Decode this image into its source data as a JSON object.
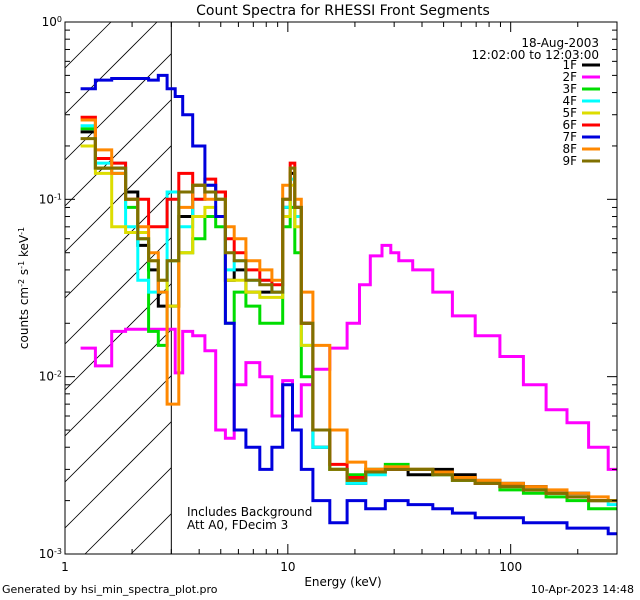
{
  "chart_data": {
    "type": "line",
    "title": "Count Spectra for RHESSI Front Segments",
    "xlabel": "Energy (keV)",
    "ylabel": "counts cm^-2 s^-1 keV^-1",
    "xscale": "log",
    "yscale": "log",
    "xlim": [
      1,
      300
    ],
    "ylim": [
      0.001,
      1
    ],
    "x_ticks": [
      {
        "value": 1,
        "label": "1"
      },
      {
        "value": 10,
        "label": "10"
      },
      {
        "value": 100,
        "label": "100"
      }
    ],
    "y_ticks": [
      {
        "value": 0.001,
        "base": "10",
        "exp": "-3"
      },
      {
        "value": 0.01,
        "base": "10",
        "exp": "-2"
      },
      {
        "value": 0.1,
        "base": "10",
        "exp": "-1"
      },
      {
        "value": 1,
        "base": "10",
        "exp": "0"
      }
    ],
    "date": "18-Aug-2003",
    "time_range": "12:02:00 to 12:03:00",
    "annotation": [
      "Includes Background",
      "Att A0, FDecim 3"
    ],
    "hatched_region_max_kev": 3,
    "series": [
      {
        "name": "1F",
        "color": "#000000",
        "x": [
          1.25,
          1.5,
          1.75,
          2,
          2.25,
          2.5,
          2.75,
          3,
          3.5,
          4,
          4.5,
          5,
          5.5,
          6,
          7,
          8,
          9,
          10,
          10.5,
          11,
          12,
          14,
          17,
          20,
          25,
          30,
          40,
          50,
          60,
          80,
          100,
          130,
          160,
          200,
          250,
          300
        ],
        "y": [
          0.24,
          0.15,
          0.15,
          0.11,
          0.055,
          0.04,
          0.025,
          0.025,
          0.08,
          0.12,
          0.11,
          0.11,
          0.035,
          0.04,
          0.03,
          0.03,
          0.03,
          0.09,
          0.14,
          0.09,
          0.02,
          0.004,
          0.003,
          0.0025,
          0.003,
          0.003,
          0.0028,
          0.003,
          0.0028,
          0.0026,
          0.0025,
          0.0024,
          0.0022,
          0.0022,
          0.002,
          0.002
        ]
      },
      {
        "name": "2F",
        "color": "#ff00ff",
        "x": [
          1.25,
          1.5,
          1.75,
          2,
          2.25,
          2.5,
          2.75,
          3,
          3.25,
          3.5,
          4,
          4.5,
          5,
          5.5,
          6,
          7,
          8,
          9,
          10,
          11,
          12,
          14,
          17,
          20,
          22,
          25,
          28,
          30,
          33,
          40,
          50,
          60,
          80,
          100,
          130,
          160,
          200,
          250,
          300
        ],
        "y": [
          0.0145,
          0.0115,
          0.018,
          0.0185,
          0.0185,
          0.0185,
          0.0185,
          0.0185,
          0.0105,
          0.018,
          0.017,
          0.014,
          0.005,
          0.0045,
          0.009,
          0.012,
          0.01,
          0.006,
          0.0095,
          0.006,
          0.009,
          0.011,
          0.0145,
          0.02,
          0.033,
          0.048,
          0.055,
          0.05,
          0.045,
          0.04,
          0.03,
          0.022,
          0.017,
          0.013,
          0.009,
          0.0065,
          0.0055,
          0.004,
          0.003
        ]
      },
      {
        "name": "3F",
        "color": "#00dd00",
        "x": [
          1.25,
          1.5,
          1.75,
          2,
          2.25,
          2.5,
          2.75,
          3,
          3.5,
          4,
          4.5,
          5,
          5.5,
          6,
          7,
          8,
          9,
          10,
          10.5,
          11,
          12,
          14,
          17,
          20,
          25,
          30,
          40,
          50,
          60,
          80,
          100,
          130,
          160,
          200,
          250,
          300
        ],
        "y": [
          0.25,
          0.15,
          0.14,
          0.09,
          0.06,
          0.018,
          0.015,
          0.045,
          0.05,
          0.06,
          0.08,
          0.07,
          0.02,
          0.03,
          0.025,
          0.02,
          0.02,
          0.07,
          0.09,
          0.05,
          0.01,
          0.005,
          0.003,
          0.0028,
          0.003,
          0.0032,
          0.003,
          0.0028,
          0.0026,
          0.0025,
          0.0023,
          0.0022,
          0.0021,
          0.002,
          0.0018,
          0.0018
        ]
      },
      {
        "name": "4F",
        "color": "#00ffff",
        "x": [
          1.25,
          1.5,
          1.75,
          2,
          2.25,
          2.5,
          2.75,
          3,
          3.5,
          4,
          4.5,
          5,
          5.5,
          6,
          7,
          8,
          9,
          10,
          10.5,
          11,
          12,
          14,
          17,
          20,
          25,
          30,
          40,
          50,
          60,
          80,
          100,
          130,
          160,
          200,
          250,
          300
        ],
        "y": [
          0.26,
          0.16,
          0.16,
          0.07,
          0.035,
          0.03,
          0.03,
          0.11,
          0.07,
          0.1,
          0.12,
          0.1,
          0.04,
          0.045,
          0.035,
          0.035,
          0.03,
          0.09,
          0.13,
          0.08,
          0.015,
          0.004,
          0.003,
          0.0025,
          0.0028,
          0.003,
          0.003,
          0.0029,
          0.0027,
          0.0025,
          0.0024,
          0.0023,
          0.0022,
          0.0021,
          0.002,
          0.0019
        ]
      },
      {
        "name": "5F",
        "color": "#dddd00",
        "x": [
          1.25,
          1.5,
          1.75,
          2,
          2.25,
          2.5,
          2.75,
          3,
          3.5,
          4,
          4.5,
          5,
          5.5,
          6,
          7,
          8,
          9,
          10,
          10.5,
          11,
          12,
          14,
          17,
          20,
          25,
          30,
          40,
          50,
          60,
          80,
          100,
          130,
          160,
          200,
          250,
          300
        ],
        "y": [
          0.2,
          0.14,
          0.07,
          0.065,
          0.065,
          0.045,
          0.035,
          0.025,
          0.05,
          0.08,
          0.09,
          0.08,
          0.035,
          0.035,
          0.03,
          0.028,
          0.028,
          0.08,
          0.12,
          0.07,
          0.015,
          0.005,
          0.003,
          0.0026,
          0.003,
          0.0031,
          0.003,
          0.0029,
          0.0027,
          0.0025,
          0.0024,
          0.0023,
          0.0022,
          0.0021,
          0.002,
          0.002
        ]
      },
      {
        "name": "6F",
        "color": "#ff0000",
        "x": [
          1.25,
          1.5,
          1.75,
          2,
          2.25,
          2.5,
          2.75,
          3,
          3.5,
          4,
          4.5,
          5,
          5.5,
          6,
          7,
          8,
          9,
          10,
          10.5,
          11,
          12,
          14,
          17,
          20,
          25,
          30,
          40,
          50,
          60,
          80,
          100,
          130,
          160,
          200,
          250,
          300
        ],
        "y": [
          0.29,
          0.17,
          0.16,
          0.1,
          0.1,
          0.07,
          0.07,
          0.1,
          0.14,
          0.1,
          0.13,
          0.11,
          0.06,
          0.05,
          0.04,
          0.035,
          0.033,
          0.1,
          0.16,
          0.09,
          0.02,
          0.005,
          0.0032,
          0.0027,
          0.0029,
          0.003,
          0.003,
          0.0029,
          0.0027,
          0.0025,
          0.0024,
          0.0023,
          0.0022,
          0.0021,
          0.002,
          0.002
        ]
      },
      {
        "name": "7F",
        "color": "#0000dd",
        "x": [
          1.25,
          1.5,
          1.75,
          2,
          2.25,
          2.5,
          2.75,
          3,
          3.25,
          3.5,
          4,
          4.5,
          5,
          5.5,
          6,
          7,
          8,
          9,
          10,
          11,
          12,
          14,
          17,
          20,
          25,
          30,
          40,
          50,
          60,
          80,
          100,
          130,
          160,
          200,
          250,
          300
        ],
        "y": [
          0.42,
          0.47,
          0.48,
          0.48,
          0.48,
          0.47,
          0.5,
          0.42,
          0.38,
          0.3,
          0.2,
          0.12,
          0.08,
          0.02,
          0.005,
          0.004,
          0.003,
          0.004,
          0.009,
          0.005,
          0.003,
          0.002,
          0.0015,
          0.002,
          0.0018,
          0.002,
          0.0019,
          0.0018,
          0.0017,
          0.0016,
          0.0016,
          0.0015,
          0.0015,
          0.0014,
          0.0014,
          0.0013
        ]
      },
      {
        "name": "8F",
        "color": "#ff8800",
        "x": [
          1.25,
          1.5,
          1.75,
          2,
          2.25,
          2.5,
          2.75,
          3,
          3.5,
          4,
          4.5,
          5,
          5.5,
          6,
          7,
          8,
          9,
          10,
          10.5,
          11,
          12,
          14,
          17,
          20,
          25,
          30,
          40,
          50,
          60,
          80,
          100,
          130,
          160,
          200,
          250,
          300
        ],
        "y": [
          0.28,
          0.19,
          0.14,
          0.1,
          0.07,
          0.05,
          0.03,
          0.007,
          0.09,
          0.12,
          0.1,
          0.1,
          0.07,
          0.06,
          0.045,
          0.04,
          0.035,
          0.12,
          0.15,
          0.1,
          0.03,
          0.015,
          0.005,
          0.0033,
          0.003,
          0.0031,
          0.003,
          0.0029,
          0.0027,
          0.0026,
          0.0025,
          0.0024,
          0.0023,
          0.0022,
          0.0021,
          0.002
        ]
      },
      {
        "name": "9F",
        "color": "#807000",
        "x": [
          1.25,
          1.5,
          1.75,
          2,
          2.25,
          2.5,
          2.75,
          3,
          3.5,
          4,
          4.5,
          5,
          5.5,
          6,
          7,
          8,
          9,
          10,
          10.5,
          11,
          12,
          14,
          17,
          20,
          25,
          30,
          40,
          50,
          60,
          80,
          100,
          130,
          160,
          200,
          250,
          300
        ],
        "y": [
          0.22,
          0.15,
          0.15,
          0.1,
          0.06,
          0.045,
          0.035,
          0.045,
          0.11,
          0.12,
          0.11,
          0.1,
          0.05,
          0.045,
          0.035,
          0.033,
          0.03,
          0.1,
          0.15,
          0.09,
          0.02,
          0.005,
          0.003,
          0.0026,
          0.0029,
          0.003,
          0.003,
          0.0028,
          0.0026,
          0.0025,
          0.0024,
          0.0023,
          0.0022,
          0.0021,
          0.002,
          0.002
        ]
      }
    ]
  },
  "footer": {
    "left": "Generated by hsi_min_spectra_plot.pro",
    "right": "10-Apr-2023 14:48"
  }
}
